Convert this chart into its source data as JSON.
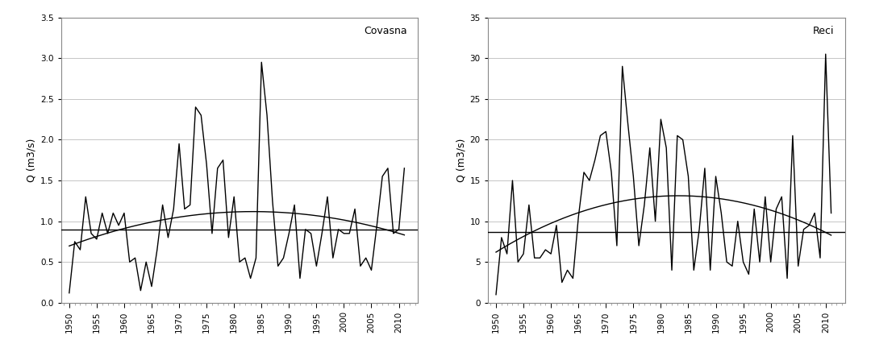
{
  "covasna": {
    "years": [
      1950,
      1951,
      1952,
      1953,
      1954,
      1955,
      1956,
      1957,
      1958,
      1959,
      1960,
      1961,
      1962,
      1963,
      1964,
      1965,
      1966,
      1967,
      1968,
      1969,
      1970,
      1971,
      1972,
      1973,
      1974,
      1975,
      1976,
      1977,
      1978,
      1979,
      1980,
      1981,
      1982,
      1983,
      1984,
      1985,
      1986,
      1987,
      1988,
      1989,
      1990,
      1991,
      1992,
      1993,
      1994,
      1995,
      1996,
      1997,
      1998,
      1999,
      2000,
      2001,
      2002,
      2003,
      2004,
      2005,
      2006,
      2007,
      2008,
      2009,
      2010,
      2011
    ],
    "values": [
      0.12,
      0.75,
      0.65,
      1.3,
      0.85,
      0.78,
      1.1,
      0.85,
      1.1,
      0.95,
      1.1,
      0.5,
      0.55,
      0.15,
      0.5,
      0.2,
      0.65,
      1.2,
      0.8,
      1.15,
      1.95,
      1.15,
      1.2,
      2.4,
      2.3,
      1.7,
      0.85,
      1.65,
      1.75,
      0.8,
      1.3,
      0.5,
      0.55,
      0.3,
      0.55,
      2.95,
      2.3,
      1.25,
      0.45,
      0.55,
      0.85,
      1.2,
      0.3,
      0.9,
      0.85,
      0.45,
      0.85,
      1.3,
      0.55,
      0.9,
      0.85,
      0.85,
      1.15,
      0.45,
      0.55,
      0.4,
      0.95,
      1.55,
      1.65,
      0.85,
      0.9,
      1.65
    ],
    "ylabel": "Q (m3/s)",
    "station": "Covasna",
    "ylim": [
      0.0,
      3.5
    ],
    "yticks": [
      0.0,
      0.5,
      1.0,
      1.5,
      2.0,
      2.5,
      3.0,
      3.5
    ],
    "linear_mean": 0.9
  },
  "reci": {
    "years": [
      1950,
      1951,
      1952,
      1953,
      1954,
      1955,
      1956,
      1957,
      1958,
      1959,
      1960,
      1961,
      1962,
      1963,
      1964,
      1965,
      1966,
      1967,
      1968,
      1969,
      1970,
      1971,
      1972,
      1973,
      1974,
      1975,
      1976,
      1977,
      1978,
      1979,
      1980,
      1981,
      1982,
      1983,
      1984,
      1985,
      1986,
      1987,
      1988,
      1989,
      1990,
      1991,
      1992,
      1993,
      1994,
      1995,
      1996,
      1997,
      1998,
      1999,
      2000,
      2001,
      2002,
      2003,
      2004,
      2005,
      2006,
      2007,
      2008,
      2009,
      2010,
      2011
    ],
    "values": [
      1.0,
      8.0,
      6.0,
      15.0,
      5.0,
      6.0,
      12.0,
      5.5,
      5.5,
      6.5,
      6.0,
      9.5,
      2.5,
      4.0,
      3.0,
      10.5,
      16.0,
      15.0,
      17.5,
      20.5,
      21.0,
      16.0,
      7.0,
      29.0,
      22.0,
      15.5,
      7.0,
      12.0,
      19.0,
      10.0,
      22.5,
      19.0,
      4.0,
      20.5,
      20.0,
      15.5,
      4.0,
      9.0,
      16.5,
      4.0,
      15.5,
      11.0,
      5.0,
      4.5,
      10.0,
      5.0,
      3.5,
      11.5,
      5.0,
      13.0,
      5.0,
      11.5,
      13.0,
      3.0,
      20.5,
      4.5,
      9.0,
      9.5,
      11.0,
      5.5,
      30.5,
      11.0
    ],
    "ylabel": "Q (m3/s)",
    "station": "Reci",
    "ylim": [
      0,
      35
    ],
    "yticks": [
      0,
      5,
      10,
      15,
      20,
      25,
      30,
      35
    ],
    "linear_mean": 8.7
  },
  "bg_color": "#ffffff",
  "line_color": "#000000",
  "trend_color": "#000000",
  "grid_color": "#bbbbbb",
  "spine_color": "#888888",
  "xticks": [
    1950,
    1955,
    1960,
    1965,
    1970,
    1975,
    1980,
    1985,
    1990,
    1995,
    2000,
    2005,
    2010
  ],
  "xlim": [
    1948.5,
    2013.5
  ]
}
